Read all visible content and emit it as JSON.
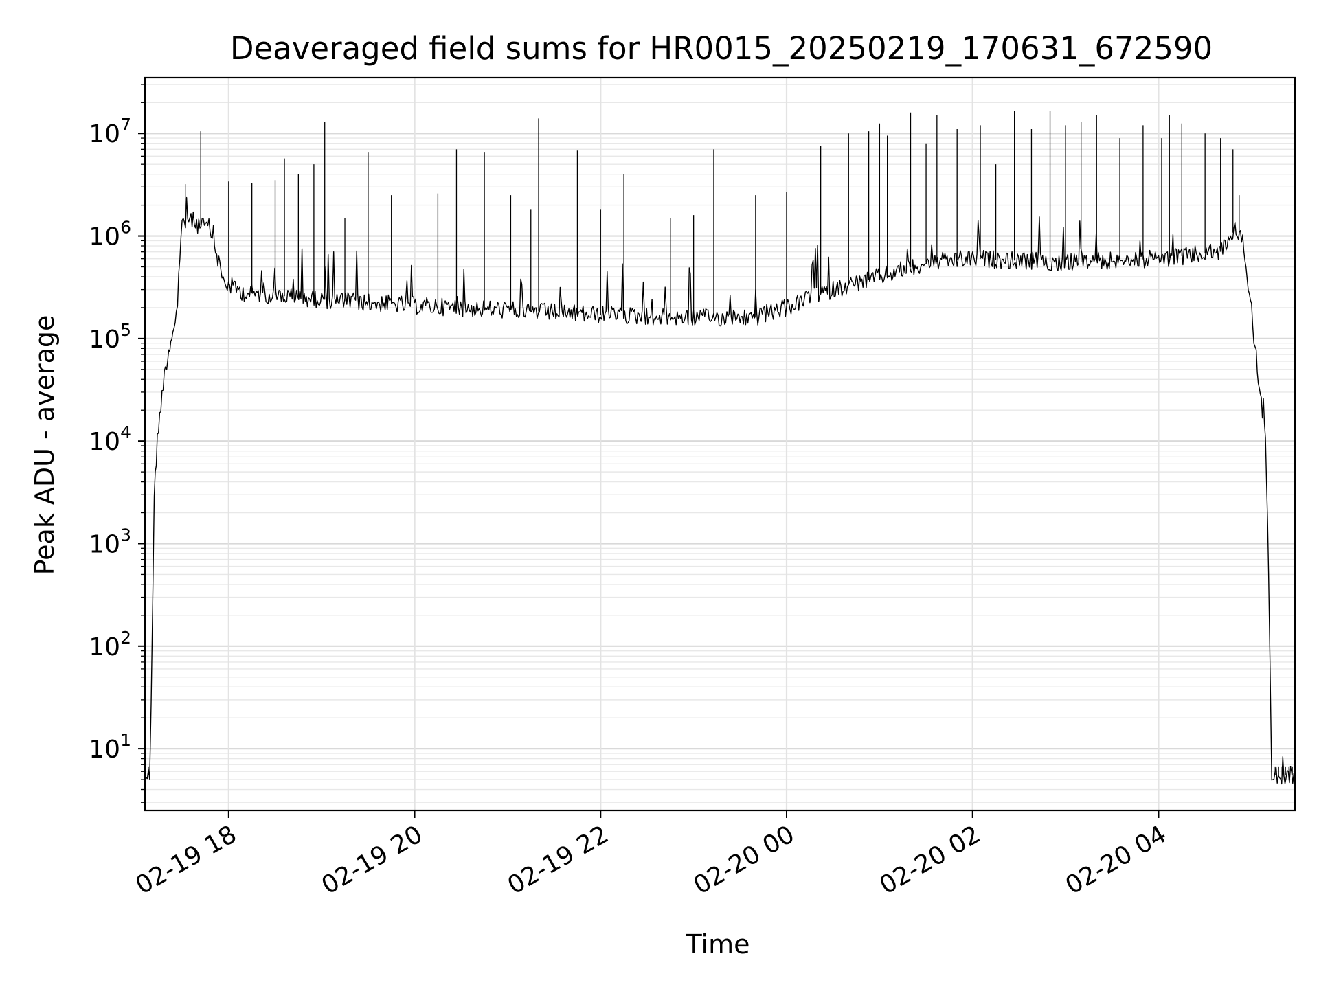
{
  "chart_data": {
    "type": "line",
    "title": "Deaveraged field sums for HR0015_20250219_170631_672590",
    "xlabel": "Time",
    "ylabel": "Peak ADU - average",
    "yscale": "log",
    "ylim": [
      2.5,
      35000000
    ],
    "xlim": [
      "2025-02-19 17:06",
      "2025-02-20 05:28"
    ],
    "grid": true,
    "x_ticks": [
      {
        "t": "2025-02-19 18:00",
        "label": "02-19 18"
      },
      {
        "t": "2025-02-19 20:00",
        "label": "02-19 20"
      },
      {
        "t": "2025-02-19 22:00",
        "label": "02-19 22"
      },
      {
        "t": "2025-02-20 00:00",
        "label": "02-20 00"
      },
      {
        "t": "2025-02-20 02:00",
        "label": "02-20 02"
      },
      {
        "t": "2025-02-20 04:00",
        "label": "02-20 04"
      }
    ],
    "y_ticks": [
      {
        "value": 10,
        "base": "10",
        "exp": "1"
      },
      {
        "value": 100,
        "base": "10",
        "exp": "2"
      },
      {
        "value": 1000,
        "base": "10",
        "exp": "3"
      },
      {
        "value": 10000,
        "base": "10",
        "exp": "4"
      },
      {
        "value": 100000,
        "base": "10",
        "exp": "5"
      },
      {
        "value": 1000000,
        "base": "10",
        "exp": "6"
      },
      {
        "value": 10000000,
        "base": "10",
        "exp": "7"
      }
    ],
    "series": [
      {
        "color": "#000000",
        "baseline_points": [
          [
            "2025-02-19 17:06",
            5.5
          ],
          [
            "2025-02-19 17:09",
            5.5
          ],
          [
            "2025-02-19 17:10",
            30
          ],
          [
            "2025-02-19 17:11",
            300
          ],
          [
            "2025-02-19 17:12",
            3000
          ],
          [
            "2025-02-19 17:14",
            10000
          ],
          [
            "2025-02-19 17:17",
            30000
          ],
          [
            "2025-02-19 17:20",
            60000
          ],
          [
            "2025-02-19 17:24",
            120000
          ],
          [
            "2025-02-19 17:27",
            200000
          ],
          [
            "2025-02-19 17:30",
            1300000
          ],
          [
            "2025-02-19 17:35",
            1500000
          ],
          [
            "2025-02-19 17:40",
            1300000
          ],
          [
            "2025-02-19 17:48",
            1200000
          ],
          [
            "2025-02-19 17:53",
            600000
          ],
          [
            "2025-02-19 17:57",
            350000
          ],
          [
            "2025-02-19 18:10",
            280000
          ],
          [
            "2025-02-19 19:00",
            240000
          ],
          [
            "2025-02-19 20:00",
            210000
          ],
          [
            "2025-02-19 21:00",
            190000
          ],
          [
            "2025-02-19 22:00",
            170000
          ],
          [
            "2025-02-19 23:00",
            160000
          ],
          [
            "2025-02-19 23:40",
            160000
          ],
          [
            "2025-02-20 00:00",
            200000
          ],
          [
            "2025-02-20 00:30",
            300000
          ],
          [
            "2025-02-20 01:00",
            400000
          ],
          [
            "2025-02-20 01:30",
            550000
          ],
          [
            "2025-02-20 02:00",
            600000
          ],
          [
            "2025-02-20 03:00",
            550000
          ],
          [
            "2025-02-20 04:00",
            600000
          ],
          [
            "2025-02-20 04:40",
            700000
          ],
          [
            "2025-02-20 04:50",
            1200000
          ],
          [
            "2025-02-20 04:55",
            800000
          ],
          [
            "2025-02-20 05:00",
            200000
          ],
          [
            "2025-02-20 05:03",
            50000
          ],
          [
            "2025-02-20 05:07",
            20000
          ],
          [
            "2025-02-20 05:09",
            12000
          ],
          [
            "2025-02-20 05:11",
            500
          ],
          [
            "2025-02-20 05:12",
            50
          ],
          [
            "2025-02-20 05:13",
            5.5
          ],
          [
            "2025-02-20 05:28",
            5.5
          ]
        ],
        "spikes": [
          [
            "2025-02-19 17:32",
            3200000
          ],
          [
            "2025-02-19 17:42",
            10500000
          ],
          [
            "2025-02-19 18:00",
            3400000
          ],
          [
            "2025-02-19 18:15",
            3300000
          ],
          [
            "2025-02-19 18:30",
            3500000
          ],
          [
            "2025-02-19 18:36",
            5700000
          ],
          [
            "2025-02-19 18:45",
            4000000
          ],
          [
            "2025-02-19 18:55",
            5000000
          ],
          [
            "2025-02-19 19:02",
            13000000
          ],
          [
            "2025-02-19 19:15",
            1500000
          ],
          [
            "2025-02-19 19:30",
            6500000
          ],
          [
            "2025-02-19 19:45",
            2500000
          ],
          [
            "2025-02-19 20:15",
            2600000
          ],
          [
            "2025-02-19 20:27",
            7000000
          ],
          [
            "2025-02-19 20:45",
            6500000
          ],
          [
            "2025-02-19 21:02",
            2500000
          ],
          [
            "2025-02-19 21:15",
            1800000
          ],
          [
            "2025-02-19 21:20",
            14000000
          ],
          [
            "2025-02-19 21:45",
            6800000
          ],
          [
            "2025-02-19 22:00",
            1800000
          ],
          [
            "2025-02-19 22:15",
            4000000
          ],
          [
            "2025-02-19 22:45",
            1500000
          ],
          [
            "2025-02-19 23:00",
            1600000
          ],
          [
            "2025-02-19 23:13",
            7000000
          ],
          [
            "2025-02-19 23:40",
            2500000
          ],
          [
            "2025-02-20 00:00",
            2700000
          ],
          [
            "2025-02-20 00:22",
            7500000
          ],
          [
            "2025-02-20 00:40",
            10000000
          ],
          [
            "2025-02-20 00:53",
            10500000
          ],
          [
            "2025-02-20 01:00",
            12500000
          ],
          [
            "2025-02-20 01:05",
            9500000
          ],
          [
            "2025-02-20 01:20",
            16000000
          ],
          [
            "2025-02-20 01:30",
            8000000
          ],
          [
            "2025-02-20 01:37",
            15000000
          ],
          [
            "2025-02-20 01:50",
            11000000
          ],
          [
            "2025-02-20 02:05",
            12000000
          ],
          [
            "2025-02-20 02:15",
            5000000
          ],
          [
            "2025-02-20 02:27",
            16500000
          ],
          [
            "2025-02-20 02:38",
            11000000
          ],
          [
            "2025-02-20 02:50",
            16500000
          ],
          [
            "2025-02-20 03:00",
            12000000
          ],
          [
            "2025-02-20 03:10",
            13000000
          ],
          [
            "2025-02-20 03:20",
            15000000
          ],
          [
            "2025-02-20 03:35",
            9000000
          ],
          [
            "2025-02-20 03:50",
            12000000
          ],
          [
            "2025-02-20 04:02",
            9000000
          ],
          [
            "2025-02-20 04:07",
            15000000
          ],
          [
            "2025-02-20 04:15",
            12500000
          ],
          [
            "2025-02-20 04:30",
            10000000
          ],
          [
            "2025-02-20 04:40",
            9000000
          ],
          [
            "2025-02-20 04:48",
            7000000
          ],
          [
            "2025-02-20 04:52",
            2500000
          ]
        ]
      }
    ]
  }
}
